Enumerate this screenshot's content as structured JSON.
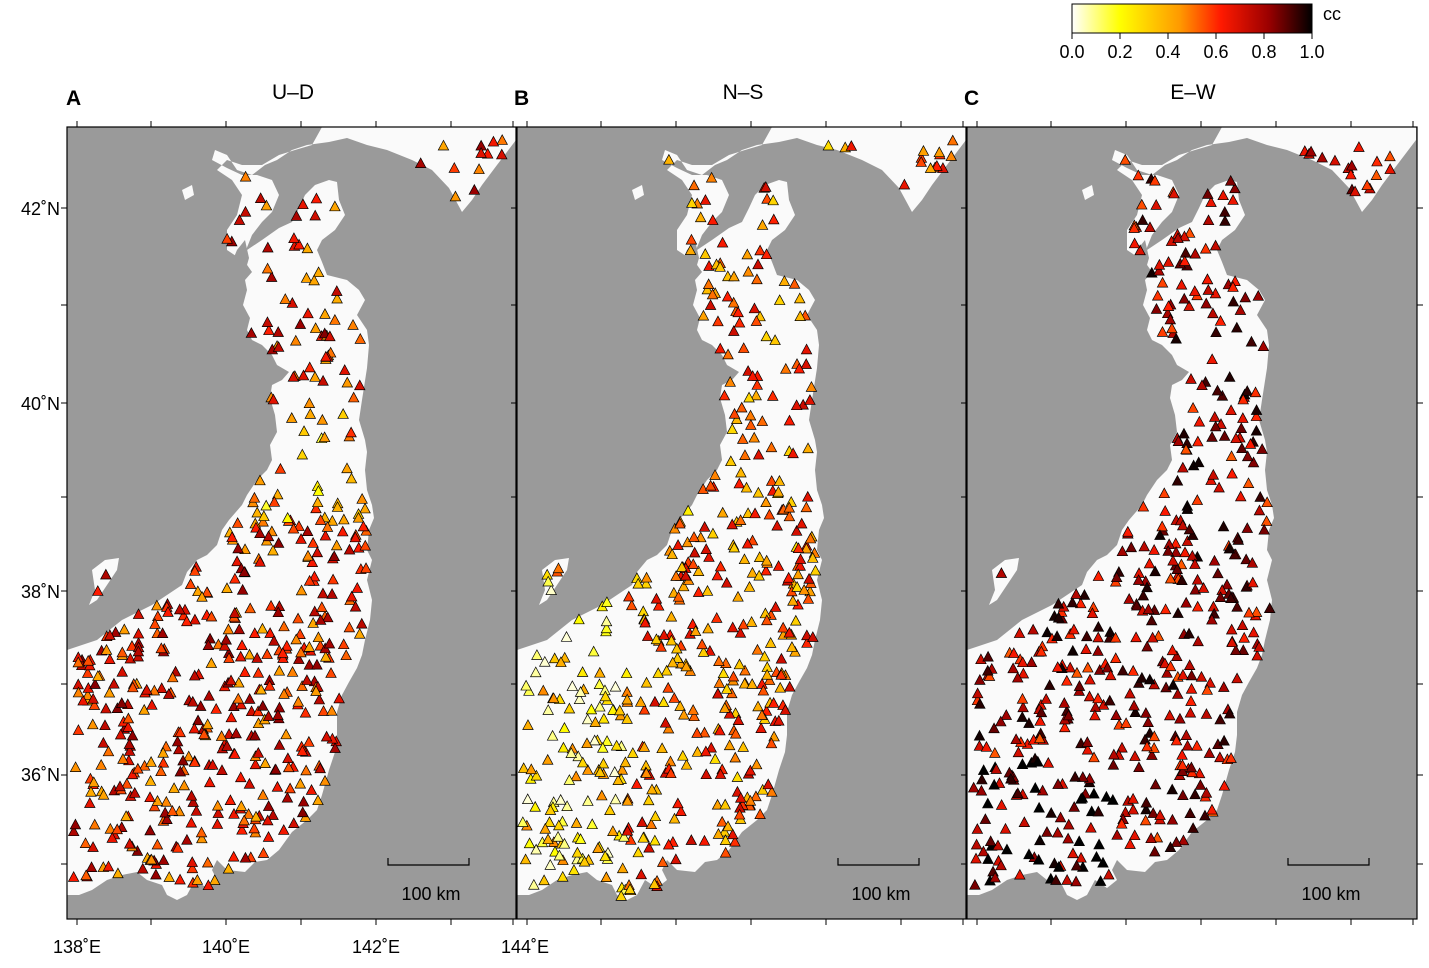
{
  "colorbar": {
    "label": "cc",
    "ticks": [
      "0.0",
      "0.2",
      "0.4",
      "0.6",
      "0.8",
      "1.0"
    ],
    "colors": [
      "#ffffff",
      "#ffff00",
      "#ff8c00",
      "#ff0000",
      "#8b0000",
      "#000000"
    ]
  },
  "panels": [
    {
      "letter": "A",
      "title": "U–D",
      "scale_label": "100 km",
      "seed": 11,
      "bias": 0.62
    },
    {
      "letter": "B",
      "title": "N–S",
      "scale_label": "100 km",
      "seed": 29,
      "bias": 0.5
    },
    {
      "letter": "C",
      "title": "E–W",
      "scale_label": "100 km",
      "seed": 47,
      "bias": 0.76
    }
  ],
  "axes": {
    "lat_labels": [
      "42˚N",
      "40˚N",
      "38˚N",
      "36˚N"
    ],
    "lon_labels": [
      "138˚E",
      "140˚E",
      "142˚E",
      "144˚E"
    ]
  },
  "colors": {
    "sea": "#9a9a9a",
    "land": "#fafafa"
  }
}
